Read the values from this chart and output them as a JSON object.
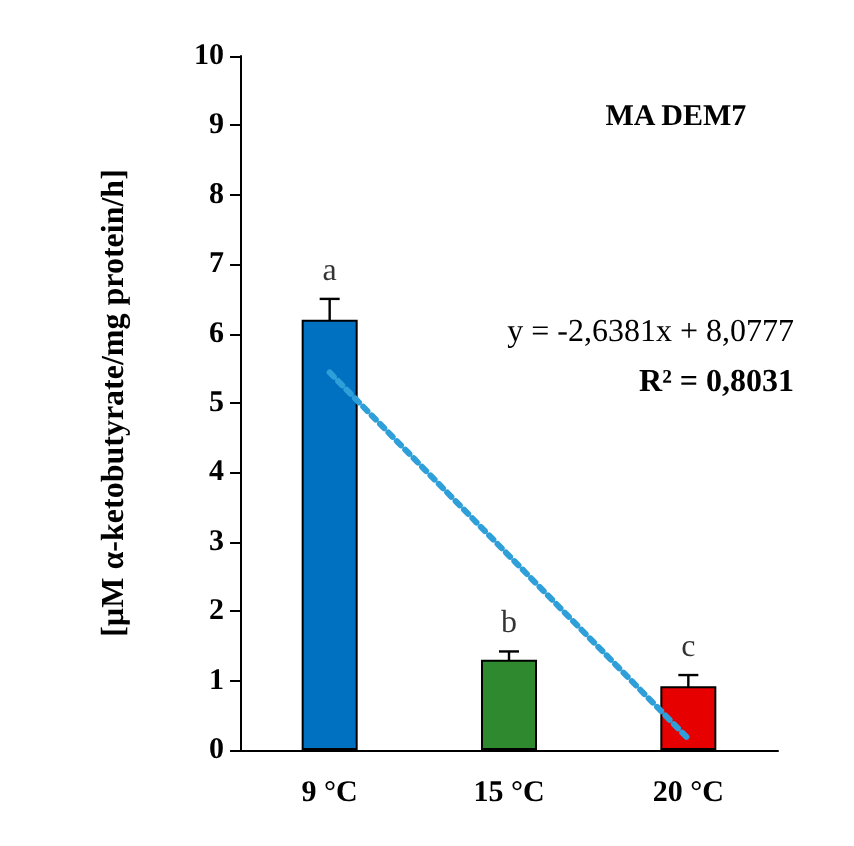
{
  "chart_data": {
    "type": "bar",
    "title": "MA DEM7",
    "ylabel": "[µM α-ketobutyrate/mg protein/h]",
    "categories": [
      "9 °C",
      "15 °C",
      "20 °C"
    ],
    "series": [
      {
        "colors": [
          "#0070c0",
          "#2f8a2f",
          "#e60000"
        ],
        "values": [
          6.2,
          1.3,
          0.92
        ],
        "errors": [
          0.3,
          0.12,
          0.16
        ]
      },
      {
        "type": "line",
        "x": [
          "9 °C",
          "20 °C"
        ],
        "values": [
          5.44,
          0.16
        ],
        "color": "#2e9fd8",
        "line_style": "dotted"
      }
    ],
    "annotations": [
      "a",
      "b",
      "c",
      "y = -2,6381x + 8,0777",
      "R² = 0,8031"
    ],
    "ylim": [
      0,
      10
    ],
    "yticks": [
      0,
      1,
      2,
      3,
      4,
      5,
      6,
      7,
      8,
      9,
      10
    ],
    "grid": false
  }
}
